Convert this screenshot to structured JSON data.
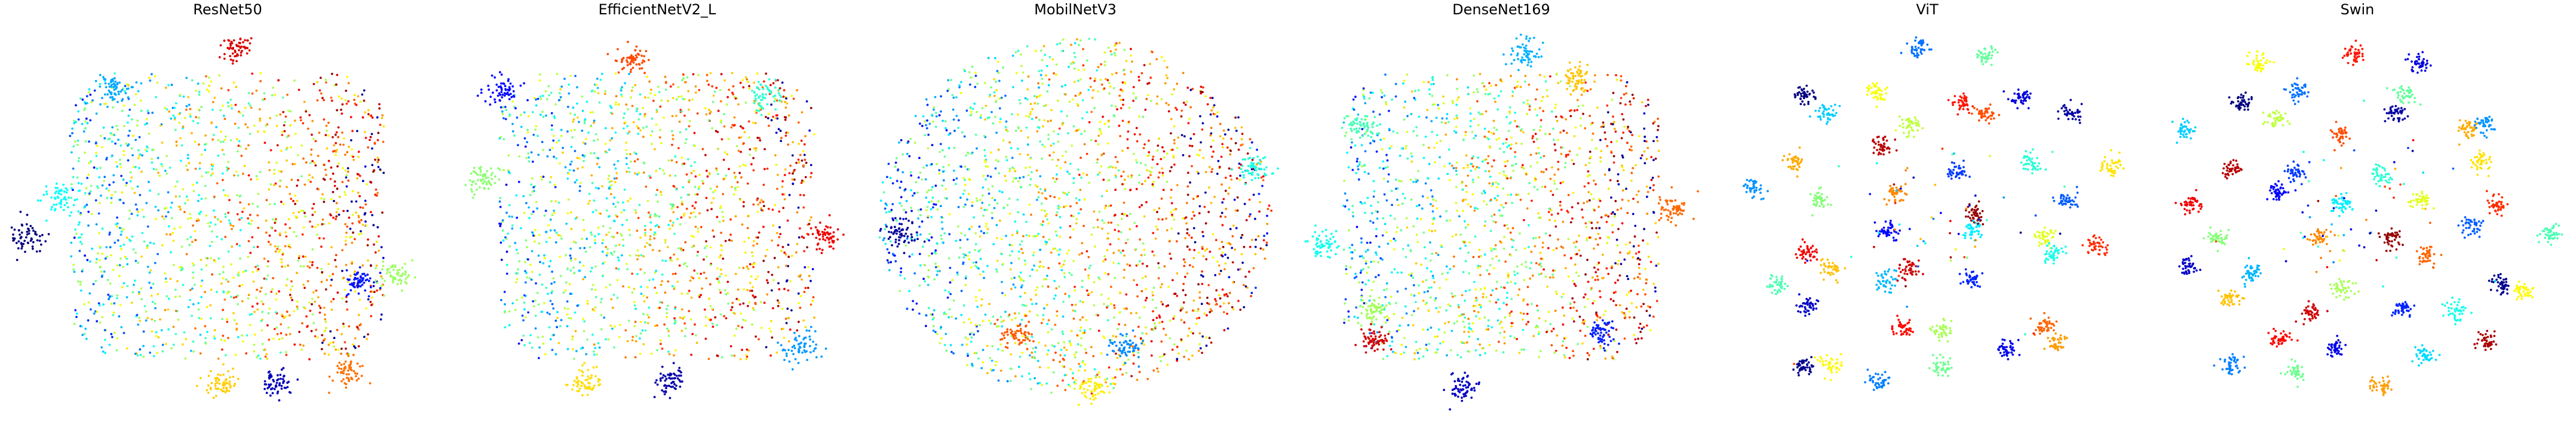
{
  "figure": {
    "panels": [
      "ResNet50",
      "EfficientNetV2_L",
      "MobilNetV3",
      "DenseNet169",
      "ViT",
      "Swin"
    ]
  },
  "chart_data": [
    {
      "type": "scatter",
      "title": "ResNet50",
      "axes": "off",
      "grid": false,
      "colormap": "jet",
      "legend": "none",
      "cluster_separation": "low",
      "points_per_cluster": 60
    },
    {
      "type": "scatter",
      "title": "EfficientNetV2_L",
      "axes": "off",
      "grid": false,
      "colormap": "jet",
      "legend": "none",
      "cluster_separation": "low",
      "points_per_cluster": 60
    },
    {
      "type": "scatter",
      "title": "MobilNetV3",
      "axes": "off",
      "grid": false,
      "colormap": "jet",
      "legend": "none",
      "cluster_separation": "very low",
      "points_per_cluster": 60
    },
    {
      "type": "scatter",
      "title": "DenseNet169",
      "axes": "off",
      "grid": false,
      "colormap": "jet",
      "legend": "none",
      "cluster_separation": "low",
      "points_per_cluster": 60
    },
    {
      "type": "scatter",
      "title": "ViT",
      "axes": "off",
      "grid": false,
      "colormap": "jet",
      "legend": "none",
      "cluster_separation": "high",
      "points_per_cluster": 42
    },
    {
      "type": "scatter",
      "title": "Swin",
      "axes": "off",
      "grid": false,
      "colormap": "jet",
      "legend": "none",
      "cluster_separation": "high",
      "points_per_cluster": 42
    }
  ]
}
